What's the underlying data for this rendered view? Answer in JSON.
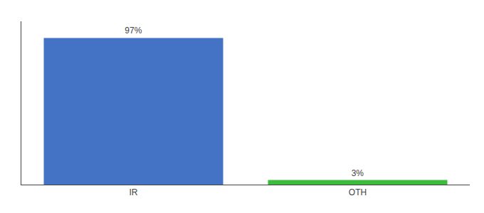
{
  "chart_data": {
    "type": "bar",
    "categories": [
      "IR",
      "OTH"
    ],
    "values": [
      97,
      3
    ],
    "value_labels": [
      "97%",
      "3%"
    ],
    "colors": [
      "#4472c4",
      "#3dbb3d"
    ],
    "ylim": [
      0,
      108
    ],
    "tick_labels": "x",
    "grid": false,
    "data_labels": true
  }
}
